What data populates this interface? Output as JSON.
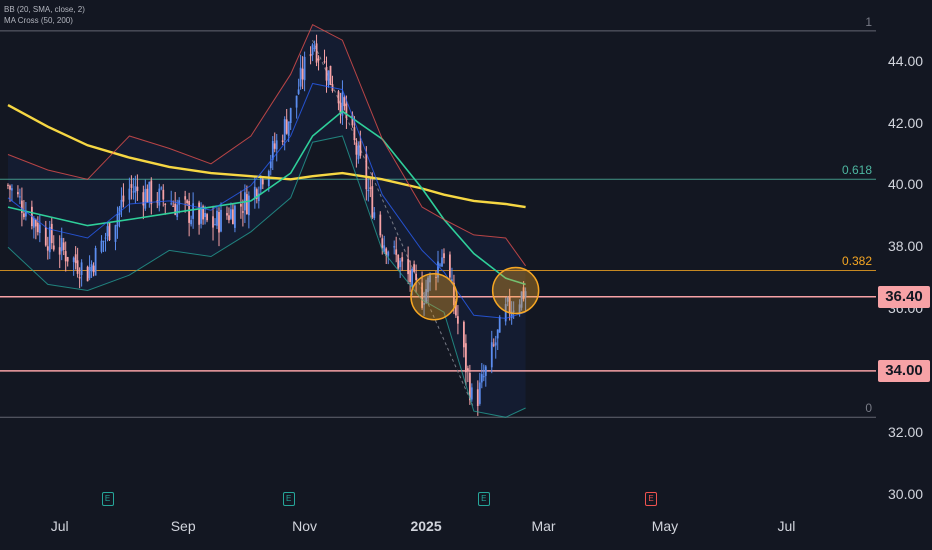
{
  "legend": {
    "bb": "BB (20, SMA, close, 2)",
    "ma": "MA Cross (50, 200)"
  },
  "price_tags": [
    {
      "label": "36.40",
      "value": 36.4
    },
    {
      "label": "34.00",
      "value": 34.0
    }
  ],
  "fib_levels": [
    {
      "label": "1",
      "value": 45.0,
      "color": "#787b86"
    },
    {
      "label": "0.618",
      "value": 40.2,
      "color": "#4db6a0"
    },
    {
      "label": "0.382",
      "value": 37.25,
      "color": "#f5a623"
    },
    {
      "label": "0",
      "value": 32.5,
      "color": "#787b86"
    }
  ],
  "earnings_icon": "E",
  "earnings_markers": [
    {
      "date": "2024-07-25",
      "color": "#26a69a"
    },
    {
      "date": "2024-10-24",
      "color": "#26a69a"
    },
    {
      "date": "2025-01-30",
      "color": "#26a69a"
    },
    {
      "date": "2025-04-24",
      "color": "#ef5350"
    }
  ],
  "chart_data": {
    "type": "line",
    "x_tick_labels": [
      "Jul",
      "Sep",
      "Nov",
      "2025",
      "Mar",
      "May",
      "Jul"
    ],
    "y_tick_labels": [
      "30.00",
      "32.00",
      "34.00",
      "36.00",
      "38.00",
      "40.00",
      "42.00",
      "44.00"
    ],
    "y_ticks": [
      30,
      32,
      34,
      36,
      38,
      40,
      42,
      44
    ],
    "ylim": [
      29.5,
      46
    ],
    "xlim": [
      "2024-06-01",
      "2025-08-15"
    ],
    "grid": false,
    "x": [
      "2024-06-05",
      "2024-06-25",
      "2024-07-15",
      "2024-08-05",
      "2024-08-25",
      "2024-09-15",
      "2024-10-05",
      "2024-10-25",
      "2024-11-05",
      "2024-11-20",
      "2024-12-10",
      "2024-12-30",
      "2025-01-10",
      "2025-01-25",
      "2025-02-10",
      "2025-02-20"
    ],
    "series": [
      {
        "role": "close",
        "color": "#9598a1",
        "values": [
          40.0,
          38.3,
          37.2,
          39.9,
          39.5,
          38.7,
          39.6,
          42.3,
          44.7,
          42.6,
          38.3,
          36.4,
          37.9,
          32.8,
          35.9,
          36.6
        ]
      },
      {
        "role": "ma200",
        "color": "#f6d743",
        "values": [
          42.6,
          41.9,
          41.3,
          40.9,
          40.6,
          40.4,
          40.3,
          40.2,
          40.3,
          40.4,
          40.2,
          39.9,
          39.7,
          39.5,
          39.4,
          39.3
        ]
      },
      {
        "role": "ma50",
        "color": "#2fcf9a",
        "values": [
          39.3,
          39.0,
          38.7,
          38.9,
          39.1,
          39.3,
          39.5,
          40.4,
          41.6,
          42.4,
          41.5,
          39.9,
          38.9,
          37.8,
          37.0,
          36.8
        ]
      },
      {
        "role": "bb_upper",
        "color": "#ef5350",
        "values": [
          41.0,
          40.5,
          40.2,
          41.6,
          41.2,
          40.7,
          41.6,
          43.6,
          45.2,
          44.7,
          41.5,
          39.3,
          38.9,
          38.4,
          38.3,
          37.4
        ]
      },
      {
        "role": "bb_basis",
        "color": "#2962ff",
        "values": [
          39.6,
          38.6,
          38.3,
          39.4,
          39.5,
          39.2,
          40.0,
          41.6,
          43.3,
          43.1,
          39.7,
          37.9,
          37.2,
          35.8,
          35.7,
          35.9
        ]
      },
      {
        "role": "bb_lower",
        "color": "#26a69a",
        "values": [
          38.0,
          36.8,
          36.6,
          37.1,
          37.9,
          37.7,
          38.5,
          39.6,
          41.4,
          41.6,
          37.9,
          36.3,
          35.9,
          32.7,
          32.5,
          32.8
        ]
      }
    ],
    "horizontal_lines": [
      {
        "value": 36.4,
        "color": "#f7a2a6"
      },
      {
        "value": 34.0,
        "color": "#f7a2a6"
      }
    ],
    "highlights": [
      {
        "date": "2025-01-05",
        "value": 36.4
      },
      {
        "date": "2025-02-15",
        "value": 36.6
      }
    ]
  }
}
